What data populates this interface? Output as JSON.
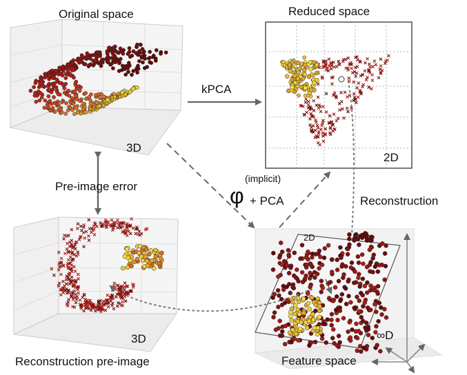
{
  "panels": {
    "original": {
      "title": "Original space",
      "dim": "3D"
    },
    "reduced": {
      "title": "Reduced space",
      "dim": "2D"
    },
    "reconstruction": {
      "title": "Reconstruction pre-image",
      "dim": "3D"
    },
    "feature": {
      "title": "Feature space",
      "plane_dim": "2D",
      "dim": "∞D"
    }
  },
  "arrows": {
    "kpca": "kPCA",
    "phi_symbol": "φ",
    "phi_superscript": "(implicit)",
    "phi_suffix": "+ PCA",
    "pre_image_error": "Pre-image error",
    "reconstruction": "Reconstruction"
  },
  "colors": {
    "arrow": "#666666",
    "dark_red": "#5a0a0a",
    "red": "#c0201a",
    "yellow": "#f5e63a",
    "grid": "#bbbbbb"
  }
}
